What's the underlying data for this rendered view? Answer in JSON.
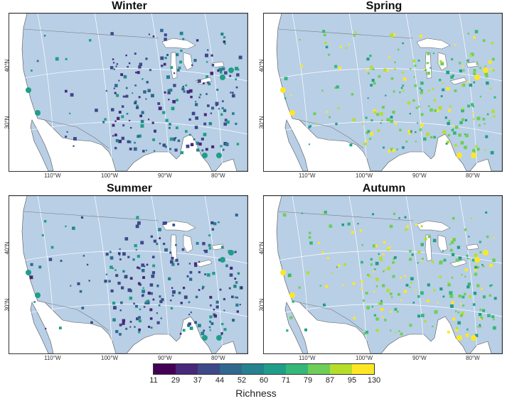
{
  "panels": [
    {
      "title": "Winter",
      "tone": "low"
    },
    {
      "title": "Spring",
      "tone": "high"
    },
    {
      "title": "Summer",
      "tone": "low"
    },
    {
      "title": "Autumn",
      "tone": "high"
    }
  ],
  "axis": {
    "lon": [
      "110°W",
      "100°W",
      "90°W",
      "80°W"
    ],
    "lat": [
      "40°N",
      "30°N"
    ]
  },
  "legend": {
    "title": "Richness",
    "labels": [
      "11",
      "29",
      "37",
      "44",
      "52",
      "60",
      "71",
      "79",
      "87",
      "95",
      "130"
    ],
    "colors": [
      "#440154",
      "#482878",
      "#3e4989",
      "#31688e",
      "#26828e",
      "#1f9e89",
      "#35b779",
      "#6ece58",
      "#b5de2b",
      "#fde725"
    ]
  },
  "colors": {
    "ocean": "#ffffff",
    "land": "#b8cfe6",
    "lakes": "#ffffff"
  }
}
